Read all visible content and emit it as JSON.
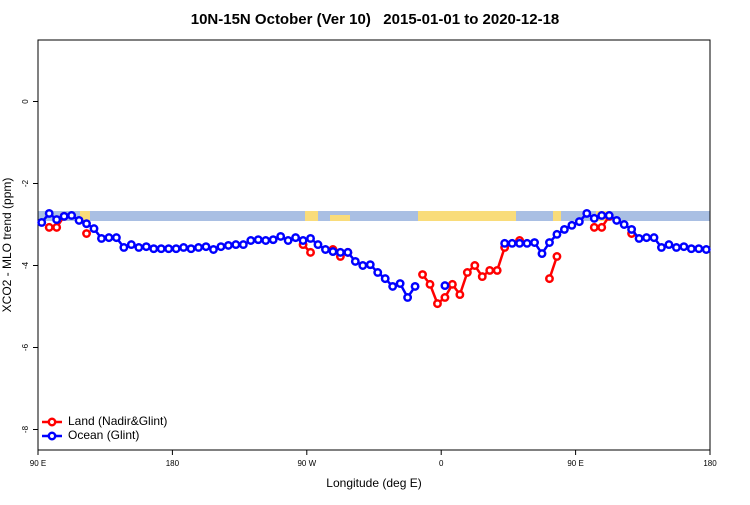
{
  "chart_data": {
    "type": "line",
    "title": "10N-15N October (Ver 10)   2015-01-01 to 2020-12-18",
    "xlabel": "Longitude (deg E)",
    "ylabel": "XCO2 - MLO trend (ppm)",
    "x": [
      -267.5,
      -262.5,
      -257.5,
      -252.5,
      -247.5,
      -242.5,
      -237.5,
      -232.5,
      -227.5,
      -222.5,
      -217.5,
      -212.5,
      -207.5,
      -202.5,
      -197.5,
      -192.5,
      -187.5,
      -182.5,
      -177.5,
      -172.5,
      -167.5,
      -162.5,
      -157.5,
      -152.5,
      -147.5,
      -142.5,
      -137.5,
      -132.5,
      -127.5,
      -122.5,
      -117.5,
      -112.5,
      -107.5,
      -102.5,
      -97.5,
      -92.5,
      -87.5,
      -82.5,
      -77.5,
      -72.5,
      -67.5,
      -62.5,
      -57.5,
      -52.5,
      -47.5,
      -42.5,
      -37.5,
      -32.5,
      -27.5,
      -22.5,
      -17.5,
      -12.5,
      -7.5,
      -2.5,
      2.5,
      7.5,
      12.5,
      17.5,
      22.5,
      27.5,
      32.5,
      37.5,
      42.5,
      47.5,
      52.5,
      57.5,
      62.5,
      67.5,
      72.5,
      77.5,
      82.5,
      87.5,
      92.5,
      97.5,
      102.5,
      107.5,
      112.5,
      117.5,
      122.5,
      127.5,
      132.5,
      137.5,
      142.5,
      147.5,
      152.5,
      157.5,
      162.5,
      167.5,
      172.5,
      177.5
    ],
    "series": [
      {
        "name": "Land (Nadir&Glint)",
        "color": "#ff0000",
        "values": [
          null,
          -3.07,
          -3.07,
          -2.8,
          null,
          null,
          -3.22,
          null,
          null,
          null,
          null,
          null,
          null,
          null,
          null,
          null,
          null,
          null,
          null,
          null,
          null,
          null,
          null,
          null,
          null,
          null,
          null,
          null,
          null,
          null,
          null,
          null,
          null,
          null,
          null,
          -3.49,
          -3.68,
          null,
          null,
          -3.61,
          -3.78,
          -3.68,
          null,
          null,
          null,
          null,
          null,
          null,
          null,
          null,
          null,
          -4.22,
          -4.46,
          -4.93,
          -4.78,
          -4.46,
          -4.71,
          -4.17,
          -4.0,
          -4.27,
          -4.12,
          -4.12,
          -3.56,
          null,
          -3.39,
          null,
          null,
          null,
          -4.32,
          -3.78,
          null,
          null,
          null,
          null,
          -3.07,
          -3.07,
          -2.8,
          null,
          null,
          -3.22,
          null,
          null,
          null,
          null,
          null,
          null,
          null,
          null,
          null,
          null
        ]
      },
      {
        "name": "Ocean (Glint)",
        "color": "#0000ff",
        "values": [
          -2.95,
          -2.73,
          -2.88,
          -2.8,
          -2.78,
          -2.9,
          -2.98,
          -3.1,
          -3.34,
          -3.32,
          -3.32,
          -3.56,
          -3.49,
          -3.56,
          -3.54,
          -3.59,
          -3.59,
          -3.59,
          -3.59,
          -3.56,
          -3.59,
          -3.56,
          -3.54,
          -3.61,
          -3.54,
          -3.51,
          -3.49,
          -3.49,
          -3.39,
          -3.37,
          -3.39,
          -3.37,
          -3.29,
          -3.39,
          -3.32,
          -3.39,
          -3.34,
          -3.49,
          -3.61,
          -3.66,
          -3.68,
          -3.68,
          -3.9,
          -4.0,
          -3.98,
          -4.17,
          -4.32,
          -4.51,
          -4.44,
          -4.78,
          -4.51,
          null,
          null,
          null,
          -4.49,
          null,
          null,
          null,
          null,
          null,
          null,
          null,
          -3.46,
          -3.46,
          -3.46,
          -3.46,
          -3.44,
          -3.71,
          -3.44,
          -3.24,
          -3.12,
          -3.02,
          -2.93,
          -2.73,
          -2.85,
          -2.78,
          -2.78,
          -2.9,
          -3.0,
          -3.12,
          -3.34,
          -3.32,
          -3.32,
          -3.56,
          -3.49,
          -3.56,
          -3.54,
          -3.59,
          -3.59,
          -3.61
        ]
      }
    ],
    "xlim": [
      -270,
      180
    ],
    "xticks": [
      {
        "value": -270,
        "label": "90 E"
      },
      {
        "value": -180,
        "label": "180"
      },
      {
        "value": -90,
        "label": "90 W"
      },
      0,
      {
        "value": 90,
        "label": "90 E"
      },
      {
        "value": 180,
        "label": "180"
      }
    ],
    "ylim": [
      -8.5,
      1.5
    ],
    "yticks": [
      0,
      -2,
      -4,
      -6,
      -8
    ],
    "legend": "bottom-left"
  }
}
